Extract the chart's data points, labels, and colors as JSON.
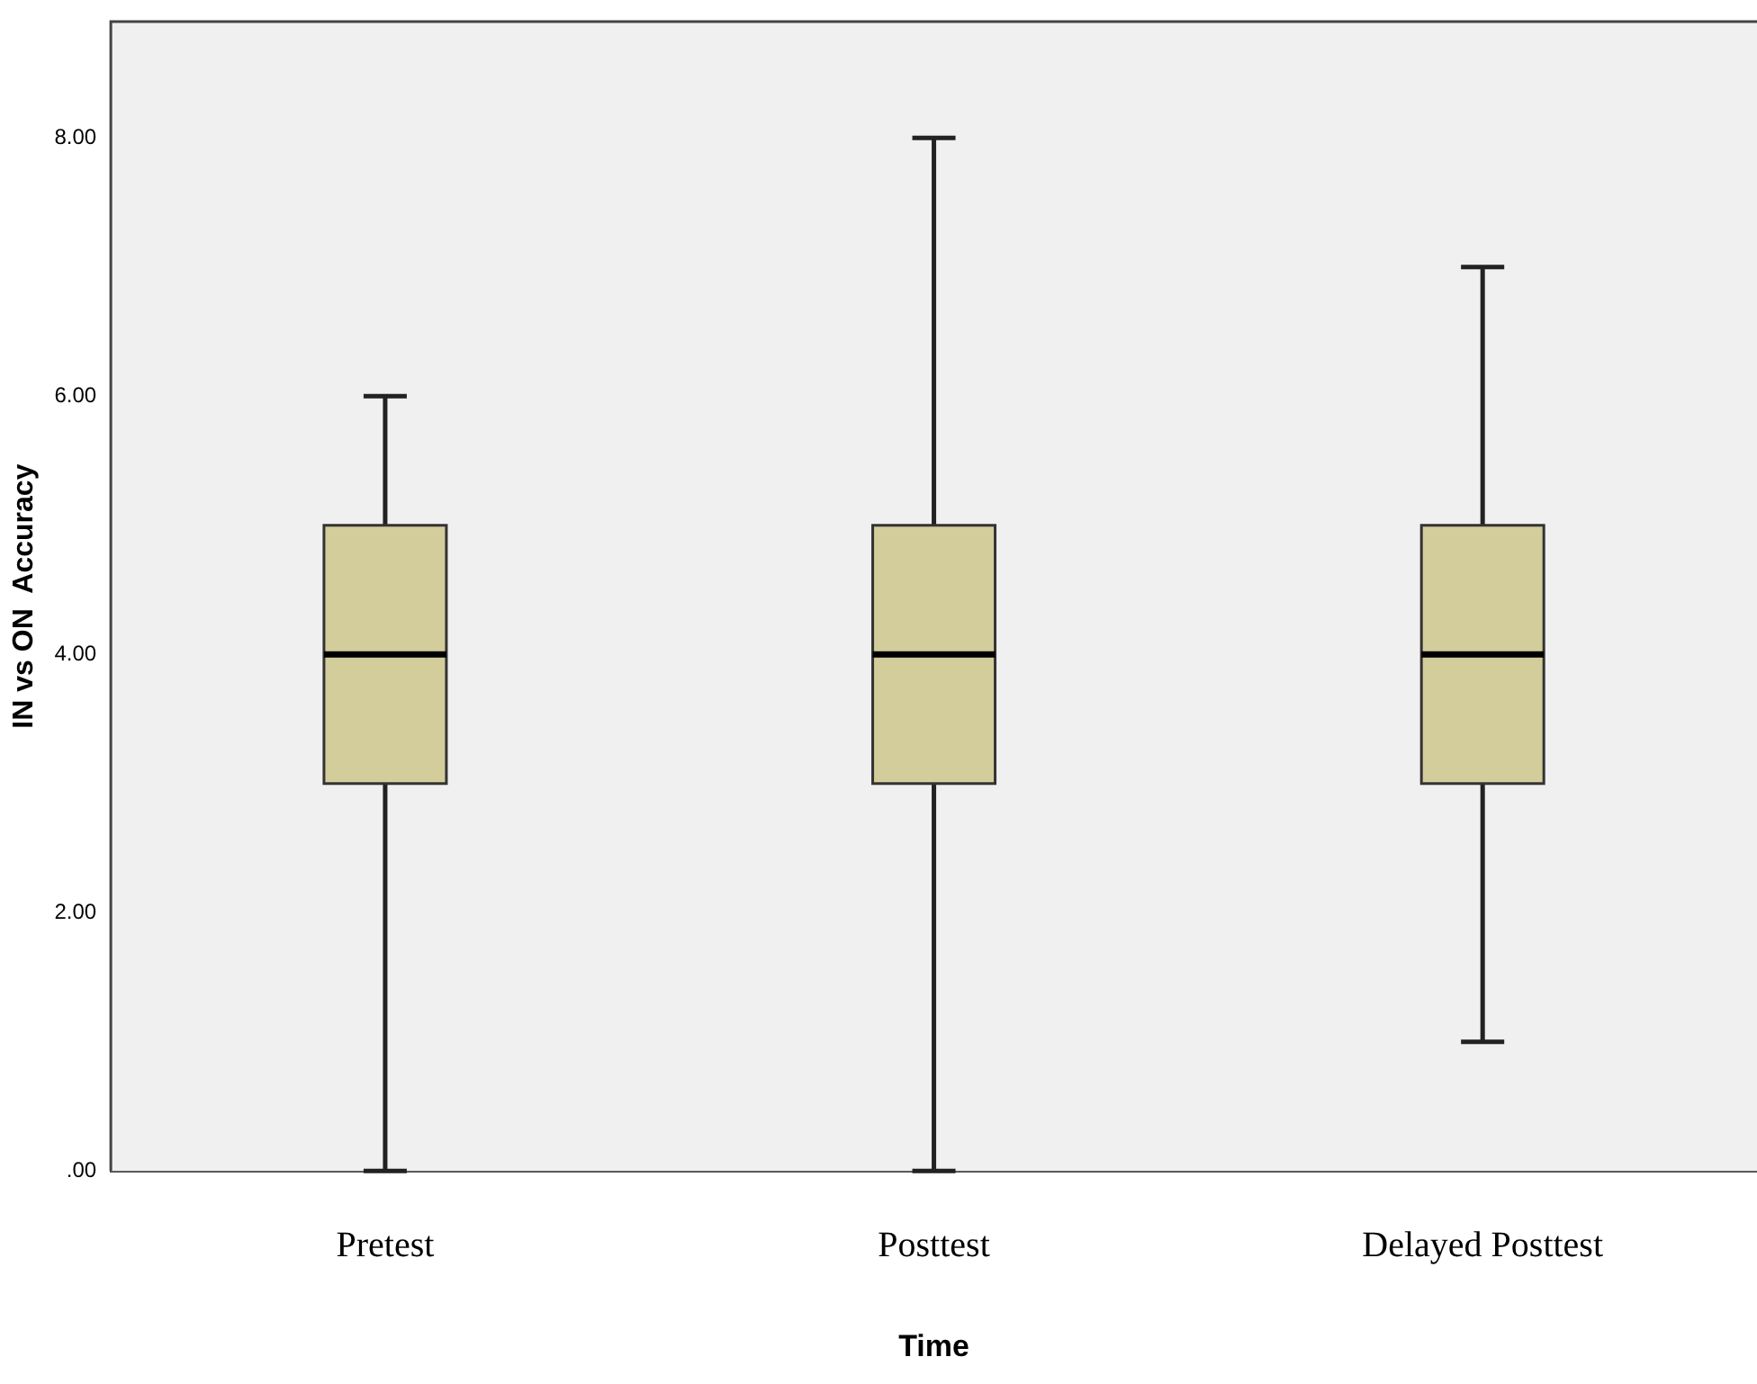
{
  "chart_data": {
    "type": "box",
    "xlabel": "Time",
    "ylabel": "IN vs ON  Accuracy",
    "categories": [
      "Pretest",
      "Posttest",
      "Delayed Posttest"
    ],
    "boxes": [
      {
        "low": 0,
        "q1": 3,
        "median": 4,
        "q3": 5,
        "high": 6
      },
      {
        "low": 0,
        "q1": 3,
        "median": 4,
        "q3": 5,
        "high": 8
      },
      {
        "low": 1,
        "q1": 3,
        "median": 4,
        "q3": 5,
        "high": 7
      }
    ],
    "color": "#d3cc9b",
    "ylim": [
      0,
      8.9
    ],
    "yticks": [
      {
        "value": 0,
        "label": ".00"
      },
      {
        "value": 2,
        "label": "2.00"
      },
      {
        "value": 4,
        "label": "4.00"
      },
      {
        "value": 6,
        "label": "6.00"
      },
      {
        "value": 8,
        "label": "8.00"
      }
    ],
    "grid": false,
    "legend": false
  }
}
